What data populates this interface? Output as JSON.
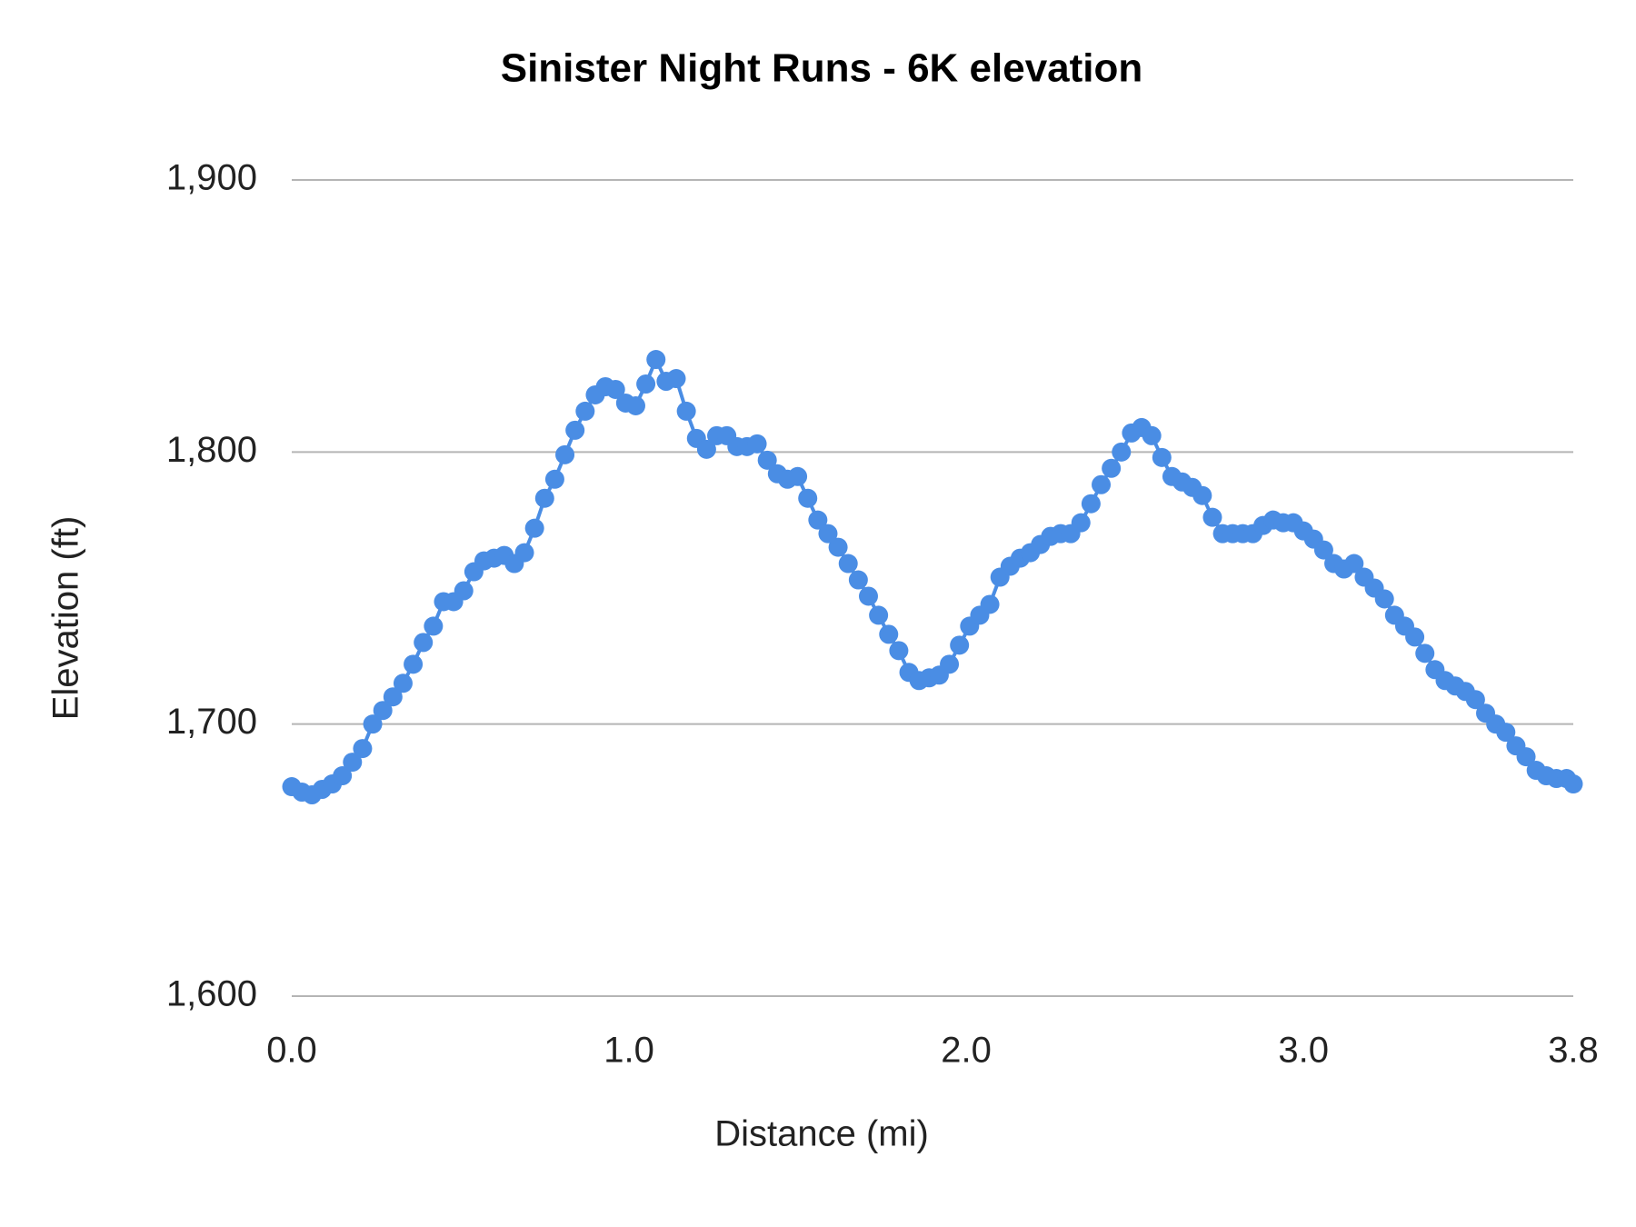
{
  "chart_data": {
    "type": "line",
    "title": "Sinister Night Runs - 6K elevation",
    "x_label": "Distance (mi)",
    "y_label": "Elevation (ft)",
    "x": [
      0.0,
      0.03,
      0.06,
      0.09,
      0.12,
      0.15,
      0.18,
      0.21,
      0.24,
      0.27,
      0.3,
      0.33,
      0.36,
      0.39,
      0.42,
      0.45,
      0.48,
      0.51,
      0.54,
      0.57,
      0.6,
      0.63,
      0.66,
      0.69,
      0.72,
      0.75,
      0.78,
      0.81,
      0.84,
      0.87,
      0.9,
      0.93,
      0.96,
      0.99,
      1.02,
      1.05,
      1.08,
      1.11,
      1.14,
      1.17,
      1.2,
      1.23,
      1.26,
      1.29,
      1.32,
      1.35,
      1.38,
      1.41,
      1.44,
      1.47,
      1.5,
      1.53,
      1.56,
      1.59,
      1.62,
      1.65,
      1.68,
      1.71,
      1.74,
      1.77,
      1.8,
      1.83,
      1.86,
      1.89,
      1.92,
      1.95,
      1.98,
      2.01,
      2.04,
      2.07,
      2.1,
      2.13,
      2.16,
      2.19,
      2.22,
      2.25,
      2.28,
      2.31,
      2.34,
      2.37,
      2.4,
      2.43,
      2.46,
      2.49,
      2.52,
      2.55,
      2.58,
      2.61,
      2.64,
      2.67,
      2.7,
      2.73,
      2.76,
      2.79,
      2.82,
      2.85,
      2.88,
      2.91,
      2.94,
      2.97,
      3.0,
      3.03,
      3.06,
      3.09,
      3.12,
      3.15,
      3.18,
      3.21,
      3.24,
      3.27,
      3.3,
      3.33,
      3.36,
      3.39,
      3.42,
      3.45,
      3.48,
      3.51,
      3.54,
      3.57,
      3.6,
      3.63,
      3.66,
      3.69,
      3.72,
      3.75,
      3.78,
      3.8
    ],
    "series": [
      {
        "name": "Elevation (ft)",
        "color": "#4a8de4",
        "values": [
          1677,
          1675,
          1674,
          1676,
          1678,
          1681,
          1686,
          1691,
          1700,
          1705,
          1710,
          1715,
          1722,
          1730,
          1736,
          1745,
          1745,
          1749,
          1756,
          1760,
          1761,
          1762,
          1759,
          1763,
          1772,
          1783,
          1790,
          1799,
          1808,
          1815,
          1821,
          1824,
          1823,
          1818,
          1817,
          1825,
          1834,
          1826,
          1827,
          1815,
          1805,
          1801,
          1806,
          1806,
          1802,
          1802,
          1803,
          1797,
          1792,
          1790,
          1791,
          1783,
          1775,
          1770,
          1765,
          1759,
          1753,
          1747,
          1740,
          1733,
          1727,
          1719,
          1716,
          1717,
          1718,
          1722,
          1729,
          1736,
          1740,
          1744,
          1754,
          1758,
          1761,
          1763,
          1766,
          1769,
          1770,
          1770,
          1774,
          1781,
          1788,
          1794,
          1800,
          1807,
          1809,
          1806,
          1798,
          1791,
          1789,
          1787,
          1784,
          1776,
          1770,
          1770,
          1770,
          1770,
          1773,
          1775,
          1774,
          1774,
          1771,
          1768,
          1764,
          1759,
          1757,
          1759,
          1754,
          1750,
          1746,
          1740,
          1736,
          1732,
          1726,
          1720,
          1716,
          1714,
          1712,
          1709,
          1704,
          1700,
          1697,
          1692,
          1688,
          1683,
          1681,
          1680,
          1680,
          1678
        ]
      }
    ],
    "xlim": [
      0,
      3.8
    ],
    "xticks": [
      {
        "value": 0,
        "label": "0.0"
      },
      {
        "value": 1,
        "label": "1.0"
      },
      {
        "value": 2,
        "label": "2.0"
      },
      {
        "value": 3,
        "label": "3.0"
      },
      3.8
    ],
    "ylim": [
      1600,
      1900
    ],
    "yticks": [
      {
        "value": 1600,
        "label": "1,600"
      },
      {
        "value": 1700,
        "label": "1,700"
      },
      {
        "value": 1800,
        "label": "1,800"
      },
      {
        "value": 1900,
        "label": "1,900"
      }
    ],
    "grid": true
  }
}
